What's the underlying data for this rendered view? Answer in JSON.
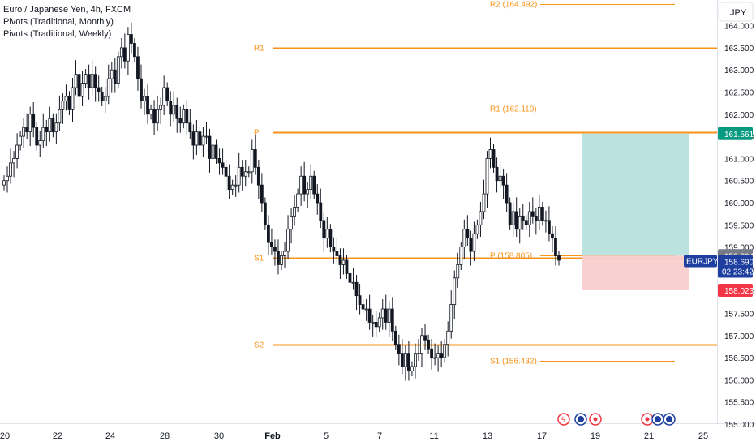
{
  "legend": {
    "title": "Euro / Japanese Yen, 4h, FXCM",
    "indicator_monthly": "Pivots (Traditional, Monthly)",
    "indicator_weekly": "Pivots (Traditional, Weekly)"
  },
  "currency_button": "JPY",
  "colors": {
    "pivot_line": "#f7931a",
    "pivot_text": "#f7931a",
    "candle_body": "#131722",
    "profit_zone": "#b2dfdb",
    "loss_zone": "#f9cdcd",
    "price_tag": "#1e3fa0",
    "target_tag": "#089981",
    "stop_tag": "#f23645",
    "entry_tag": "#787b86",
    "event_red": "#f23645",
    "event_blue": "#1e3fa0"
  },
  "chart_data": {
    "type": "candlestick",
    "symbol": "EURJPY",
    "interval": "4h",
    "ylim": [
      154.9,
      164.6
    ],
    "y_ticks": [
      "155.000",
      "155.500",
      "156.000",
      "156.500",
      "157.000",
      "157.500",
      "158.000",
      "158.500",
      "159.000",
      "159.500",
      "160.000",
      "160.500",
      "161.000",
      "161.500",
      "162.000",
      "162.500",
      "163.000",
      "163.500",
      "164.000"
    ],
    "x_ticks": [
      "20",
      "22",
      "24",
      "28",
      "30",
      "Feb",
      "5",
      "7",
      "11",
      "13",
      "17",
      "19",
      "21",
      "25"
    ],
    "monthly_pivots": [
      {
        "label": "R1",
        "value": 163.5
      },
      {
        "label": "P",
        "value": 161.6
      },
      {
        "label": "S1",
        "value": 158.75
      },
      {
        "label": "S2",
        "value": 156.8
      }
    ],
    "weekly_pivots": [
      {
        "label": "R2 (164.492)",
        "value": 164.492
      },
      {
        "label": "R1 (162.119)",
        "value": 162.119
      },
      {
        "label": "P (158.805)",
        "value": 158.805
      },
      {
        "label": "S1 (156.432)",
        "value": 156.432
      }
    ],
    "price_labels": {
      "target": "161.561",
      "entry": "158.804",
      "last": "158.690",
      "symbol_tag": "EURJPY",
      "countdown": "02:23:42",
      "stop": "158.023"
    },
    "position": {
      "entry": 158.804,
      "target": 161.561,
      "stop": 158.023
    },
    "closes": [
      160.5,
      160.6,
      160.9,
      161.0,
      161.3,
      161.5,
      161.7,
      161.6,
      162.0,
      161.7,
      161.3,
      161.4,
      161.7,
      161.6,
      161.9,
      161.6,
      161.8,
      162.1,
      162.3,
      162.4,
      162.1,
      162.6,
      162.9,
      162.4,
      162.7,
      162.9,
      162.6,
      162.9,
      162.6,
      162.5,
      162.3,
      162.4,
      162.8,
      163.0,
      162.7,
      163.3,
      163.5,
      163.2,
      163.8,
      163.6,
      163.3,
      162.8,
      162.3,
      162.4,
      162.0,
      162.1,
      161.8,
      162.1,
      162.2,
      162.6,
      162.3,
      162.0,
      162.2,
      161.9,
      161.8,
      162.1,
      161.8,
      161.6,
      161.3,
      161.6,
      161.3,
      161.5,
      161.5,
      161.0,
      161.3,
      161.0,
      160.9,
      160.8,
      160.6,
      160.3,
      160.4,
      160.4,
      160.8,
      160.6,
      160.7,
      160.7,
      161.2,
      160.8,
      160.4,
      160.0,
      159.5,
      159.1,
      159.0,
      158.9,
      158.6,
      158.8,
      158.9,
      159.4,
      159.7,
      159.9,
      160.2,
      160.6,
      160.2,
      160.3,
      160.6,
      160.2,
      160.0,
      159.6,
      159.2,
      159.4,
      159.0,
      158.9,
      158.8,
      158.6,
      158.7,
      158.4,
      158.2,
      158.2,
      157.9,
      157.7,
      157.6,
      157.6,
      157.3,
      157.3,
      157.2,
      157.4,
      157.6,
      157.3,
      157.6,
      157.1,
      156.8,
      156.6,
      156.3,
      156.6,
      156.2,
      156.3,
      156.6,
      156.6,
      157.0,
      156.9,
      156.7,
      156.5,
      156.5,
      156.6,
      156.5,
      156.8,
      157.1,
      157.7,
      158.3,
      158.6,
      159.0,
      159.4,
      159.2,
      158.9,
      159.3,
      159.5,
      159.8,
      160.2,
      161.0,
      161.2,
      160.8,
      160.5,
      160.6,
      160.4,
      160.0,
      159.5,
      159.8,
      159.4,
      159.7,
      159.6,
      159.5,
      159.8,
      159.7,
      159.6,
      159.9,
      159.6,
      159.6,
      159.3,
      159.2,
      158.8,
      158.7
    ]
  }
}
